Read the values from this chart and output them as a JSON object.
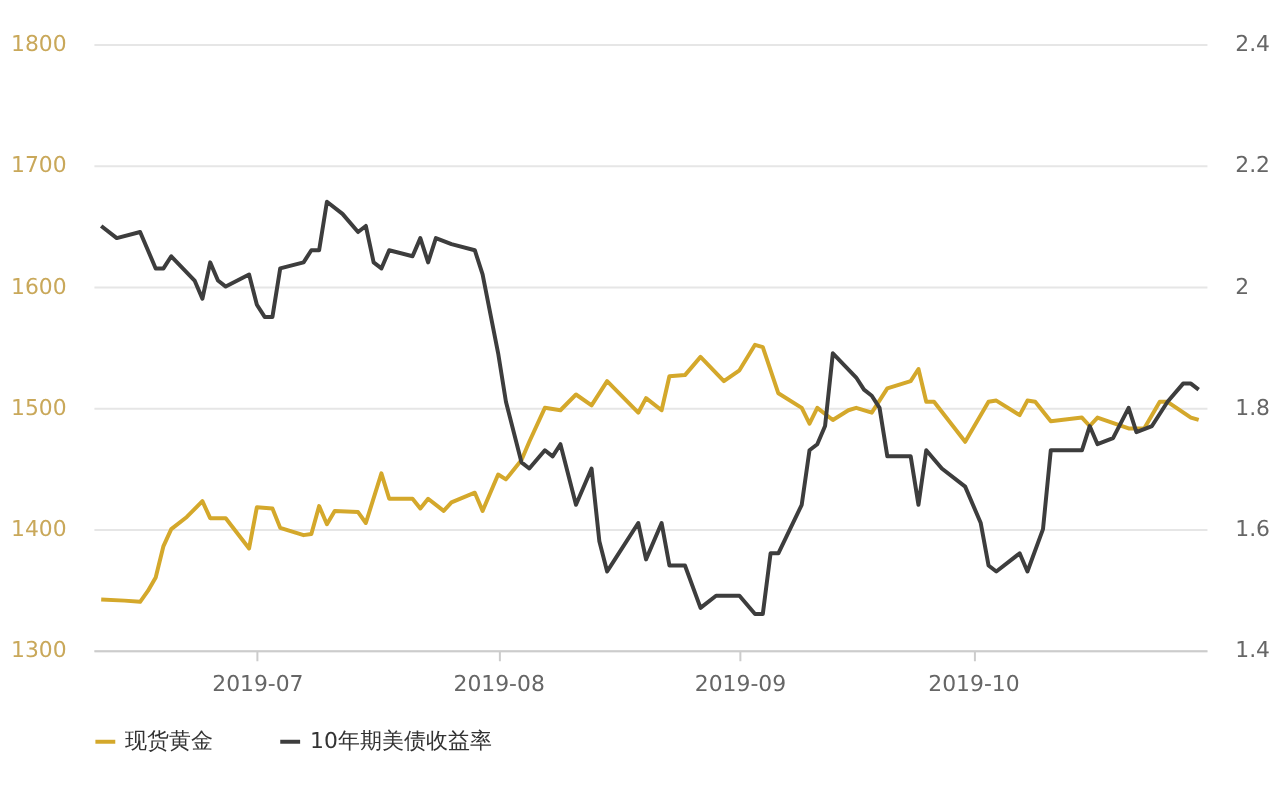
{
  "chart_data": {
    "type": "line",
    "xlim": [
      "2019-06-10",
      "2019-10-31"
    ],
    "xticks": [
      "2019-07",
      "2019-08",
      "2019-09",
      "2019-10"
    ],
    "ylim": [
      1300,
      1800
    ],
    "yticks": [
      1300,
      1400,
      1500,
      1600,
      1700,
      1800
    ],
    "y2lim": [
      1.4,
      2.4
    ],
    "y2ticks": [
      1.4,
      1.6,
      1.8,
      2,
      2.2,
      2.4
    ],
    "grid": "y",
    "legend": "bottom",
    "marker": "none",
    "line_style": "solid",
    "series": [
      {
        "name": "现货黄金",
        "color": "#d4a82b",
        "x": [
          "2019-06-11",
          "2019-06-14",
          "2019-06-16",
          "2019-06-17",
          "2019-06-18",
          "2019-06-19",
          "2019-06-20",
          "2019-06-22",
          "2019-06-24",
          "2019-06-25",
          "2019-06-27",
          "2019-06-30",
          "2019-07-01",
          "2019-07-03",
          "2019-07-04",
          "2019-07-07",
          "2019-07-08",
          "2019-07-09",
          "2019-07-10",
          "2019-07-11",
          "2019-07-14",
          "2019-07-15",
          "2019-07-17",
          "2019-07-18",
          "2019-07-21",
          "2019-07-22",
          "2019-07-23",
          "2019-07-25",
          "2019-07-26",
          "2019-07-29",
          "2019-07-30",
          "2019-08-01",
          "2019-08-02",
          "2019-08-04",
          "2019-08-05",
          "2019-08-07",
          "2019-08-09",
          "2019-08-11",
          "2019-08-13",
          "2019-08-15",
          "2019-08-19",
          "2019-08-20",
          "2019-08-22",
          "2019-08-23",
          "2019-08-25",
          "2019-08-27",
          "2019-08-30",
          "2019-09-01",
          "2019-09-03",
          "2019-09-04",
          "2019-09-06",
          "2019-09-09",
          "2019-09-10",
          "2019-09-11",
          "2019-09-13",
          "2019-09-15",
          "2019-09-16",
          "2019-09-18",
          "2019-09-20",
          "2019-09-23",
          "2019-09-24",
          "2019-09-25",
          "2019-09-26",
          "2019-09-30",
          "2019-10-03",
          "2019-10-04",
          "2019-10-07",
          "2019-10-08",
          "2019-10-09",
          "2019-10-11",
          "2019-10-15",
          "2019-10-16",
          "2019-10-17",
          "2019-10-21",
          "2019-10-23",
          "2019-10-25",
          "2019-10-26",
          "2019-10-29",
          "2019-10-30"
        ],
        "values": [
          1342,
          1341,
          1340,
          1349,
          1360,
          1386,
          1400,
          1410,
          1423,
          1409,
          1409,
          1384,
          1418,
          1417,
          1401,
          1395,
          1396,
          1419,
          1404,
          1415,
          1414,
          1405,
          1446,
          1425,
          1425,
          1417,
          1425,
          1415,
          1422,
          1430,
          1415,
          1445,
          1441,
          1457,
          1472,
          1500,
          1498,
          1511,
          1502,
          1522,
          1496,
          1508,
          1498,
          1526,
          1527,
          1542,
          1522,
          1531,
          1552,
          1550,
          1512,
          1500,
          1487,
          1500,
          1490,
          1498,
          1500,
          1496,
          1516,
          1522,
          1532,
          1505,
          1505,
          1472,
          1505,
          1506,
          1494,
          1506,
          1505,
          1489,
          1492,
          1485,
          1492,
          1483,
          1483,
          1505,
          1505,
          1492,
          1490
        ]
      },
      {
        "name": "10年期美债收益率",
        "color": "#3d3d3d",
        "axis": "y2",
        "x": [
          "2019-06-11",
          "2019-06-13",
          "2019-06-16",
          "2019-06-18",
          "2019-06-19",
          "2019-06-20",
          "2019-06-23",
          "2019-06-24",
          "2019-06-25",
          "2019-06-26",
          "2019-06-27",
          "2019-06-30",
          "2019-07-01",
          "2019-07-02",
          "2019-07-03",
          "2019-07-04",
          "2019-07-07",
          "2019-07-08",
          "2019-07-09",
          "2019-07-10",
          "2019-07-12",
          "2019-07-14",
          "2019-07-15",
          "2019-07-16",
          "2019-07-17",
          "2019-07-18",
          "2019-07-21",
          "2019-07-22",
          "2019-07-23",
          "2019-07-24",
          "2019-07-26",
          "2019-07-29",
          "2019-07-30",
          "2019-08-01",
          "2019-08-02",
          "2019-08-04",
          "2019-08-05",
          "2019-08-07",
          "2019-08-08",
          "2019-08-09",
          "2019-08-11",
          "2019-08-13",
          "2019-08-14",
          "2019-08-15",
          "2019-08-16",
          "2019-08-19",
          "2019-08-20",
          "2019-08-22",
          "2019-08-23",
          "2019-08-25",
          "2019-08-27",
          "2019-08-29",
          "2019-09-01",
          "2019-09-03",
          "2019-09-04",
          "2019-09-05",
          "2019-09-06",
          "2019-09-09",
          "2019-09-10",
          "2019-09-11",
          "2019-09-12",
          "2019-09-13",
          "2019-09-16",
          "2019-09-17",
          "2019-09-18",
          "2019-09-19",
          "2019-09-20",
          "2019-09-23",
          "2019-09-24",
          "2019-09-25",
          "2019-09-27",
          "2019-09-30",
          "2019-10-02",
          "2019-10-03",
          "2019-10-04",
          "2019-10-07",
          "2019-10-08",
          "2019-10-10",
          "2019-10-11",
          "2019-10-15",
          "2019-10-16",
          "2019-10-17",
          "2019-10-19",
          "2019-10-21",
          "2019-10-22",
          "2019-10-24",
          "2019-10-26",
          "2019-10-28",
          "2019-10-29",
          "2019-10-30"
        ],
        "values": [
          2.1,
          2.08,
          2.09,
          2.03,
          2.03,
          2.05,
          2.01,
          1.98,
          2.04,
          2.01,
          2.0,
          2.02,
          1.97,
          1.95,
          1.95,
          2.03,
          2.04,
          2.06,
          2.06,
          2.14,
          2.12,
          2.09,
          2.1,
          2.04,
          2.03,
          2.06,
          2.05,
          2.08,
          2.04,
          2.08,
          2.07,
          2.06,
          2.02,
          1.89,
          1.81,
          1.71,
          1.7,
          1.73,
          1.72,
          1.74,
          1.64,
          1.7,
          1.58,
          1.53,
          1.55,
          1.61,
          1.55,
          1.61,
          1.54,
          1.54,
          1.47,
          1.49,
          1.49,
          1.46,
          1.46,
          1.56,
          1.56,
          1.64,
          1.73,
          1.74,
          1.77,
          1.89,
          1.85,
          1.83,
          1.82,
          1.8,
          1.72,
          1.72,
          1.64,
          1.73,
          1.7,
          1.67,
          1.61,
          1.54,
          1.53,
          1.56,
          1.53,
          1.6,
          1.73,
          1.73,
          1.77,
          1.74,
          1.75,
          1.8,
          1.76,
          1.77,
          1.81,
          1.84,
          1.84,
          1.83
        ]
      }
    ]
  }
}
